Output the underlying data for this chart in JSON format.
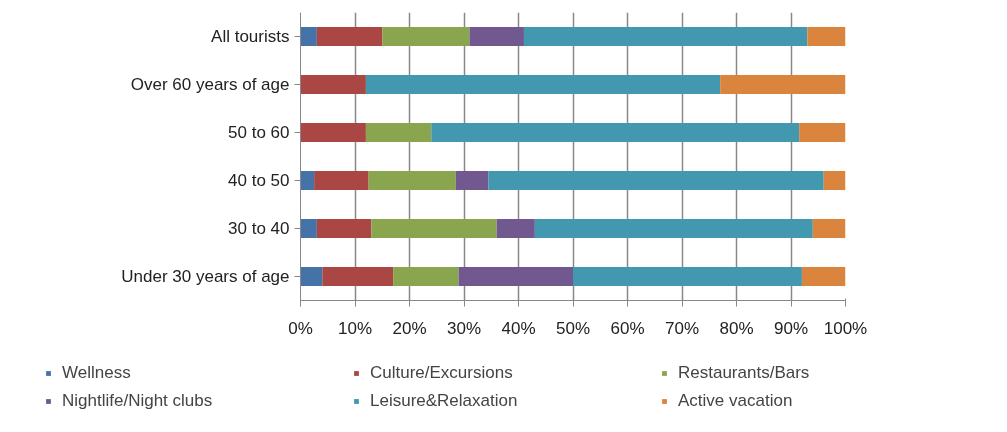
{
  "chart_data": {
    "type": "bar",
    "orientation": "horizontal",
    "stacked": true,
    "categories": [
      "All tourists",
      "Over 60 years of age",
      "50 to 60",
      "40 to 50",
      "30 to 40",
      "Under 30 years of age"
    ],
    "series": [
      {
        "name": "Wellness",
        "color": "#4572a7",
        "values": [
          3,
          0,
          0,
          2.5,
          3,
          4
        ]
      },
      {
        "name": "Culture/Excursions",
        "color": "#aa4643",
        "values": [
          12,
          12,
          12,
          10,
          10,
          13
        ]
      },
      {
        "name": "Restaurants/Bars",
        "color": "#89a54e",
        "values": [
          16,
          0,
          12,
          16,
          23,
          12
        ]
      },
      {
        "name": "Nightlife/Night clubs",
        "color": "#71588f",
        "values": [
          10,
          0,
          0,
          6,
          7,
          21
        ]
      },
      {
        "name": "Leisure&Relaxation",
        "color": "#4198af",
        "values": [
          52,
          65,
          67.5,
          61.5,
          51,
          42
        ]
      },
      {
        "name": "Active vacation",
        "color": "#db843d",
        "values": [
          7,
          23,
          8.5,
          4,
          6,
          8
        ]
      }
    ],
    "xlim": [
      0,
      100
    ],
    "xticks": [
      {
        "value": 0,
        "label": "0%"
      },
      {
        "value": 10,
        "label": "10%"
      },
      {
        "value": 20,
        "label": "20%"
      },
      {
        "value": 30,
        "label": "30%"
      },
      {
        "value": 40,
        "label": "40%"
      },
      {
        "value": 50,
        "label": "50%"
      },
      {
        "value": 60,
        "label": "60%"
      },
      {
        "value": 70,
        "label": "70%"
      },
      {
        "value": 80,
        "label": "80%"
      },
      {
        "value": 90,
        "label": "90%"
      },
      {
        "value": 100,
        "label": "100%"
      }
    ],
    "grid": "x",
    "legend": "bottom"
  }
}
